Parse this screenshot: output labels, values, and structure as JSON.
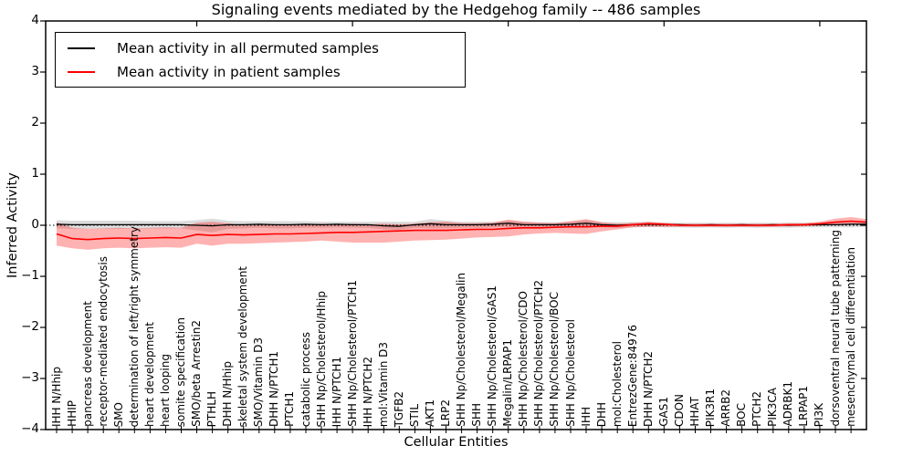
{
  "title": "Signaling events mediated by the Hedgehog family -- 486 samples",
  "legend": {
    "items": [
      {
        "label": "Mean activity in all permuted samples",
        "color": "#000000"
      },
      {
        "label": "Mean activity in patient samples",
        "color": "#ff0000"
      }
    ]
  },
  "chart_data": {
    "type": "line",
    "title": "Signaling events mediated by the Hedgehog family -- 486 samples",
    "xlabel": "Cellular Entities",
    "ylabel": "Inferred Activity",
    "ylim": [
      -4,
      4
    ],
    "grid": false,
    "zero_line_style": "dotted",
    "legend_position": "upper left",
    "yticks": [
      {
        "value": 4,
        "label": "4"
      },
      {
        "value": 3,
        "label": "3"
      },
      {
        "value": 2,
        "label": "2"
      },
      {
        "value": 1,
        "label": "1"
      },
      {
        "value": 0,
        "label": "0"
      },
      {
        "value": -1,
        "label": "−1"
      },
      {
        "value": -2,
        "label": "−2"
      },
      {
        "value": -3,
        "label": "−3"
      },
      {
        "value": -4,
        "label": "−4"
      }
    ],
    "x_major_tick_indices": [
      9,
      19,
      29,
      39,
      49
    ],
    "categories": [
      "IHH N/Hhip",
      "HHIP",
      "pancreas development",
      "receptor-mediated endocytosis",
      "SMO",
      "determination of left/right symmetry",
      "heart development",
      "heart looping",
      "somite specification",
      "SMO/beta Arrestin2",
      "PTHLH",
      "DHH N/Hhip",
      "skeletal system development",
      "SMO/Vitamin D3",
      "DHH N/PTCH1",
      "PTCH1",
      "catabolic process",
      "SHH Np/Cholesterol/Hhip",
      "IHH N/PTCH1",
      "SHH Np/Cholesterol/PTCH1",
      "IHH N/PTCH2",
      "mol:Vitamin D3",
      "TGFB2",
      "STIL",
      "AKT1",
      "LRP2",
      "SHH Np/Cholesterol/Megalin",
      "SHH",
      "SHH Np/Cholesterol/GAS1",
      "Megalin/LRPAP1",
      "SHH Np/Cholesterol/CDO",
      "SHH Np/Cholesterol/PTCH2",
      "SHH Np/Cholesterol/BOC",
      "SHH Np/Cholesterol",
      "IHH",
      "DHH",
      "mol:Cholesterol",
      "EntrezGene:84976",
      "DHH N/PTCH2",
      "GAS1",
      "CDON",
      "HHAT",
      "PIK3R1",
      "ARRB2",
      "BOC",
      "PTCH2",
      "PIK3CA",
      "ADRBK1",
      "LRPAP1",
      "PI3K",
      "dorsoventral neural tube patterning",
      "mesenchymal cell differentiation"
    ],
    "series": [
      {
        "id": "permuted",
        "name": "Mean activity in all permuted samples",
        "color": "#000000",
        "width": 1.3,
        "band_color": "rgba(0,0,0,0.14)",
        "values": [
          0.02,
          0.01,
          0.01,
          0.01,
          0.01,
          0.01,
          0.01,
          0.01,
          0.01,
          0.0,
          -0.01,
          0.01,
          0.01,
          0.02,
          0.01,
          0.01,
          0.02,
          0.01,
          0.02,
          0.01,
          0.01,
          -0.01,
          -0.02,
          0.01,
          0.03,
          0.01,
          0.01,
          0.01,
          0.02,
          0.04,
          0.01,
          0.01,
          0.01,
          0.02,
          0.04,
          0.01,
          0.0,
          0.01,
          0.02,
          0.01,
          0.01,
          0.0,
          0.01,
          0.0,
          0.01,
          0.0,
          0.01,
          0.0,
          0.01,
          0.01,
          0.01,
          0.02
        ],
        "band_upper": [
          0.1,
          0.09,
          0.09,
          0.09,
          0.09,
          0.09,
          0.08,
          0.08,
          0.08,
          0.1,
          0.13,
          0.09,
          0.08,
          0.08,
          0.08,
          0.08,
          0.08,
          0.07,
          0.07,
          0.07,
          0.07,
          0.07,
          0.07,
          0.07,
          0.12,
          0.09,
          0.07,
          0.07,
          0.07,
          0.09,
          0.07,
          0.06,
          0.06,
          0.07,
          0.1,
          0.06,
          0.06,
          0.06,
          0.06,
          0.05,
          0.05,
          0.05,
          0.05,
          0.05,
          0.05,
          0.05,
          0.05,
          0.05,
          0.05,
          0.05,
          0.06,
          0.06
        ],
        "band_lower": [
          -0.06,
          -0.07,
          -0.07,
          -0.07,
          -0.07,
          -0.07,
          -0.06,
          -0.06,
          -0.06,
          -0.1,
          -0.14,
          -0.07,
          -0.06,
          -0.05,
          -0.06,
          -0.06,
          -0.05,
          -0.05,
          -0.04,
          -0.05,
          -0.05,
          -0.08,
          -0.09,
          -0.05,
          -0.06,
          -0.06,
          -0.05,
          -0.05,
          -0.04,
          -0.03,
          -0.05,
          -0.04,
          -0.04,
          -0.04,
          -0.03,
          -0.04,
          -0.05,
          -0.04,
          -0.03,
          -0.04,
          -0.04,
          -0.05,
          -0.04,
          -0.05,
          -0.04,
          -0.05,
          -0.04,
          -0.05,
          -0.04,
          -0.04,
          -0.04,
          -0.04
        ],
        "edge_value": 0.02,
        "edge_band_upper": 0.06,
        "edge_band_lower": -0.03
      },
      {
        "id": "patient",
        "name": "Mean activity in patient samples",
        "color": "#ff0000",
        "width": 1.6,
        "band_color": "rgba(255,0,0,0.30)",
        "values": [
          -0.17,
          -0.26,
          -0.28,
          -0.26,
          -0.25,
          -0.26,
          -0.25,
          -0.24,
          -0.25,
          -0.18,
          -0.2,
          -0.18,
          -0.19,
          -0.18,
          -0.17,
          -0.17,
          -0.16,
          -0.15,
          -0.14,
          -0.14,
          -0.13,
          -0.12,
          -0.11,
          -0.1,
          -0.1,
          -0.1,
          -0.09,
          -0.08,
          -0.08,
          -0.06,
          -0.05,
          -0.05,
          -0.04,
          -0.03,
          -0.03,
          -0.02,
          -0.02,
          0.01,
          0.03,
          0.02,
          0.0,
          0.0,
          0.0,
          0.0,
          0.0,
          0.0,
          0.0,
          0.01,
          0.01,
          0.03,
          0.06,
          0.08
        ],
        "band_upper": [
          0.06,
          -0.05,
          -0.07,
          -0.06,
          -0.05,
          -0.06,
          -0.05,
          -0.04,
          -0.05,
          0.05,
          0.07,
          0.04,
          0.0,
          0.01,
          0.02,
          0.01,
          0.02,
          0.03,
          0.02,
          0.03,
          0.02,
          0.03,
          0.02,
          0.03,
          0.06,
          0.07,
          0.04,
          0.04,
          0.05,
          0.11,
          0.07,
          0.05,
          0.04,
          0.08,
          0.12,
          0.06,
          0.03,
          0.05,
          0.07,
          0.05,
          0.03,
          0.03,
          0.03,
          0.03,
          0.03,
          0.03,
          0.03,
          0.04,
          0.04,
          0.07,
          0.13,
          0.16
        ],
        "band_lower": [
          -0.4,
          -0.45,
          -0.48,
          -0.45,
          -0.44,
          -0.45,
          -0.44,
          -0.43,
          -0.44,
          -0.36,
          -0.4,
          -0.36,
          -0.36,
          -0.35,
          -0.34,
          -0.33,
          -0.32,
          -0.3,
          -0.32,
          -0.34,
          -0.34,
          -0.34,
          -0.32,
          -0.3,
          -0.29,
          -0.28,
          -0.26,
          -0.24,
          -0.23,
          -0.22,
          -0.18,
          -0.16,
          -0.15,
          -0.16,
          -0.17,
          -0.12,
          -0.08,
          -0.04,
          -0.03,
          -0.03,
          -0.03,
          -0.03,
          -0.03,
          -0.03,
          -0.03,
          -0.03,
          -0.03,
          -0.02,
          -0.02,
          -0.01,
          0.01,
          0.02
        ],
        "edge_value": 0.06,
        "edge_band_upper": 0.12,
        "edge_band_lower": 0.02
      }
    ]
  }
}
